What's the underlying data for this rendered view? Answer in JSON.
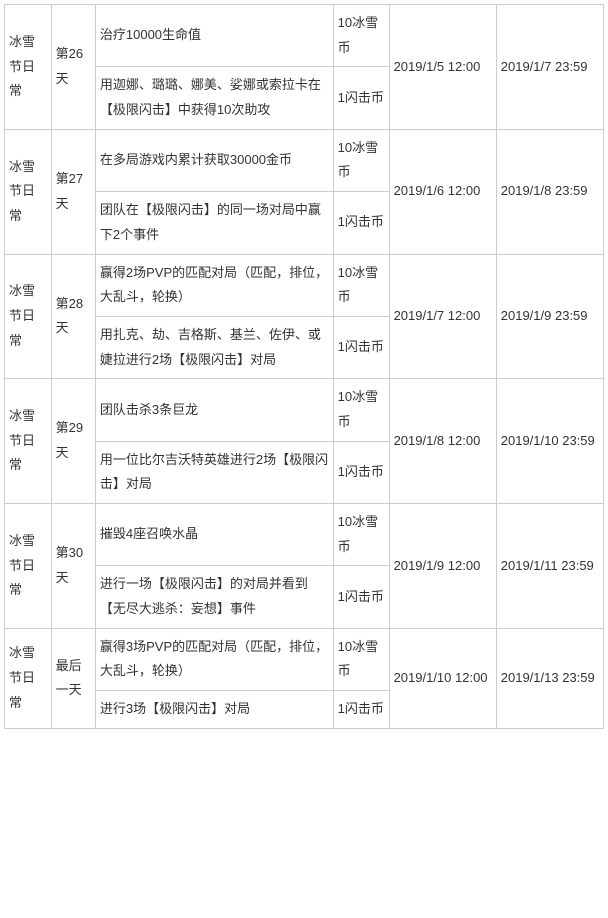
{
  "rows": [
    {
      "category": "冰雪节日常",
      "day": "第26天",
      "tasks": [
        {
          "desc": "治疗10000生命值",
          "reward": "10冰雪币"
        },
        {
          "desc": "用迦娜、璐璐、娜美、娑娜或索拉卡在【极限闪击】中获得10次助攻",
          "reward": "1闪击币"
        }
      ],
      "start": "2019/1/5 12:00",
      "end": "2019/1/7 23:59"
    },
    {
      "category": "冰雪节日常",
      "day": "第27天",
      "tasks": [
        {
          "desc": "在多局游戏内累计获取30000金币",
          "reward": "10冰雪币"
        },
        {
          "desc": "团队在【极限闪击】的同一场对局中赢下2个事件",
          "reward": "1闪击币"
        }
      ],
      "start": "2019/1/6 12:00",
      "end": "2019/1/8 23:59"
    },
    {
      "category": "冰雪节日常",
      "day": "第28天",
      "tasks": [
        {
          "desc": "赢得2场PVP的匹配对局（匹配，排位，大乱斗，轮换）",
          "reward": "10冰雪币"
        },
        {
          "desc": "用扎克、劫、吉格斯、基兰、佐伊、或婕拉进行2场【极限闪击】对局",
          "reward": "1闪击币"
        }
      ],
      "start": "2019/1/7 12:00",
      "end": "2019/1/9 23:59"
    },
    {
      "category": "冰雪节日常",
      "day": "第29天",
      "tasks": [
        {
          "desc": "团队击杀3条巨龙",
          "reward": "10冰雪币"
        },
        {
          "desc": "用一位比尔吉沃特英雄进行2场【极限闪击】对局",
          "reward": "1闪击币"
        }
      ],
      "start": "2019/1/8 12:00",
      "end": "2019/1/10 23:59"
    },
    {
      "category": "冰雪节日常",
      "day": "第30天",
      "tasks": [
        {
          "desc": "摧毁4座召唤水晶",
          "reward": "10冰雪币"
        },
        {
          "desc": "进行一场【极限闪击】的对局并看到【无尽大逃杀：妄想】事件",
          "reward": "1闪击币"
        }
      ],
      "start": "2019/1/9 12:00",
      "end": "2019/1/11 23:59"
    },
    {
      "category": "冰雪节日常",
      "day": "最后一天",
      "tasks": [
        {
          "desc": "赢得3场PVP的匹配对局（匹配，排位，大乱斗，轮换）",
          "reward": "10冰雪币"
        },
        {
          "desc": "进行3场【极限闪击】对局",
          "reward": "1闪击币"
        }
      ],
      "start": "2019/1/10 12:00",
      "end": "2019/1/13 23:59"
    }
  ]
}
